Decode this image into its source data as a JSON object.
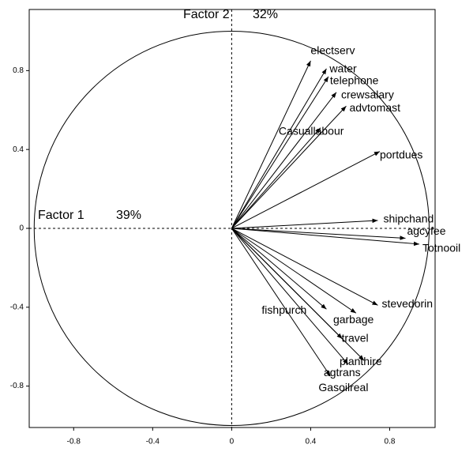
{
  "chart_data": {
    "type": "biplot",
    "x_axis_label": "Factor 1",
    "x_explained": "39%",
    "y_axis_label": "Factor 2",
    "y_explained": "32%",
    "xlim": [
      -1.025,
      1.03
    ],
    "ylim": [
      -1.01,
      1.11
    ],
    "xticks": [
      -0.8,
      -0.4,
      0,
      0.4,
      0.8
    ],
    "yticks": [
      -0.8,
      -0.4,
      0,
      0.4,
      0.8
    ],
    "unit_circle": true,
    "color": "#000000",
    "vectors": [
      {
        "label": "electserv",
        "x": 0.4,
        "y": 0.85
      },
      {
        "label": "water",
        "x": 0.48,
        "y": 0.81
      },
      {
        "label": "telephone",
        "x": 0.49,
        "y": 0.77
      },
      {
        "label": "crewsalary",
        "x": 0.53,
        "y": 0.69
      },
      {
        "label": "advtomast",
        "x": 0.58,
        "y": 0.62
      },
      {
        "label": "Casuallabour",
        "x": 0.45,
        "y": 0.51
      },
      {
        "label": "portdues",
        "x": 0.75,
        "y": 0.39
      },
      {
        "label": "shipchand",
        "x": 0.74,
        "y": 0.04
      },
      {
        "label": "agcyfee",
        "x": 0.88,
        "y": -0.05
      },
      {
        "label": "Totnooil",
        "x": 0.95,
        "y": -0.08
      },
      {
        "label": "stevedorin",
        "x": 0.74,
        "y": -0.39
      },
      {
        "label": "garbage",
        "x": 0.63,
        "y": -0.43
      },
      {
        "label": "fishpurch",
        "x": 0.48,
        "y": -0.41
      },
      {
        "label": "travel",
        "x": 0.56,
        "y": -0.56
      },
      {
        "label": "planthire",
        "x": 0.67,
        "y": -0.67
      },
      {
        "label": "agtrans",
        "x": 0.59,
        "y": -0.69
      },
      {
        "label": "Gasoilreal",
        "x": 0.5,
        "y": -0.75
      }
    ]
  }
}
